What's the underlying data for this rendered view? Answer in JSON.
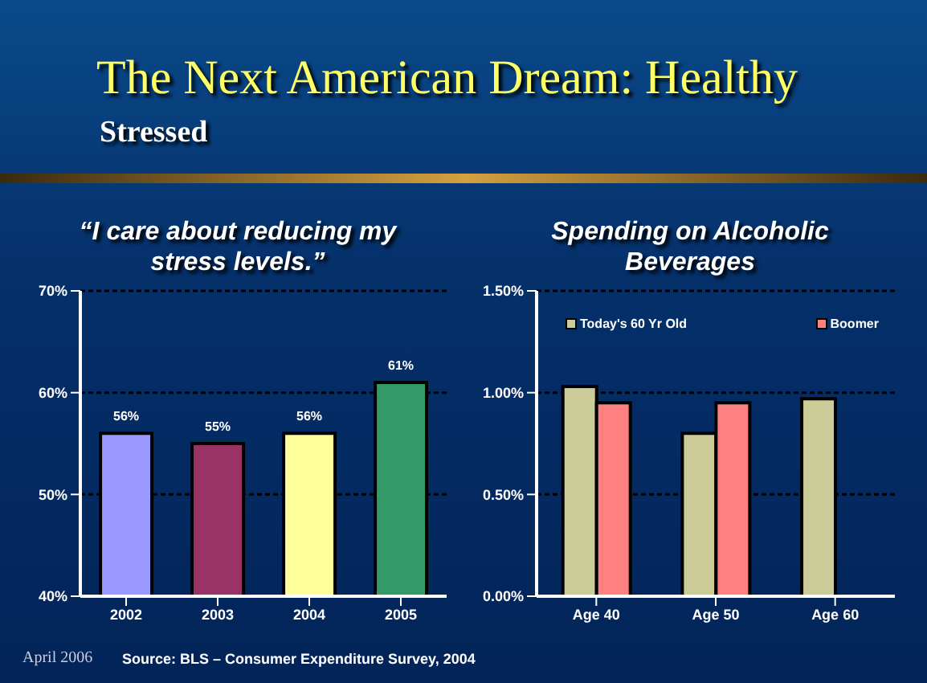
{
  "chart_data": [
    {
      "type": "bar",
      "title": "“I care about reducing my stress levels.”",
      "annotations": [
        "The Next American Dream: Healthy",
        "Stressed",
        "April 2006"
      ],
      "categories": [
        "2002",
        "2003",
        "2004",
        "2005"
      ],
      "values": [
        56,
        55,
        56,
        61
      ],
      "colors": [
        "#9999ff",
        "#993366",
        "#ffff99",
        "#339966"
      ],
      "value_labels": [
        "56%",
        "55%",
        "56%",
        "61%"
      ],
      "ylim": [
        40,
        70
      ],
      "yticks": [
        {
          "value": 40,
          "label": "40%"
        },
        {
          "value": 50,
          "label": "50%"
        },
        {
          "value": 60,
          "label": "60%"
        },
        {
          "value": 70,
          "label": "70%"
        }
      ],
      "grid": "y"
    },
    {
      "type": "bar",
      "title": "Spending on Alcoholic Beverages",
      "annotations": [
        "Source: BLS – Consumer Expenditure Survey, 2004"
      ],
      "categories": [
        "Age 40",
        "Age 50",
        "Age 60"
      ],
      "series": [
        {
          "name": "Today's 60 Yr Old",
          "color": "#cccc99",
          "values": [
            1.03,
            0.8,
            0.97
          ]
        },
        {
          "name": "Boomer",
          "color": "#ff8080",
          "values": [
            0.95,
            0.95,
            null
          ]
        }
      ],
      "ylim": [
        0,
        1.5
      ],
      "yticks": [
        {
          "value": 0,
          "label": "0.00%"
        },
        {
          "value": 0.5,
          "label": "0.50%"
        },
        {
          "value": 1,
          "label": "1.00%"
        },
        {
          "value": 1.5,
          "label": "1.50%"
        }
      ],
      "grid": "y",
      "legend": "top"
    }
  ]
}
